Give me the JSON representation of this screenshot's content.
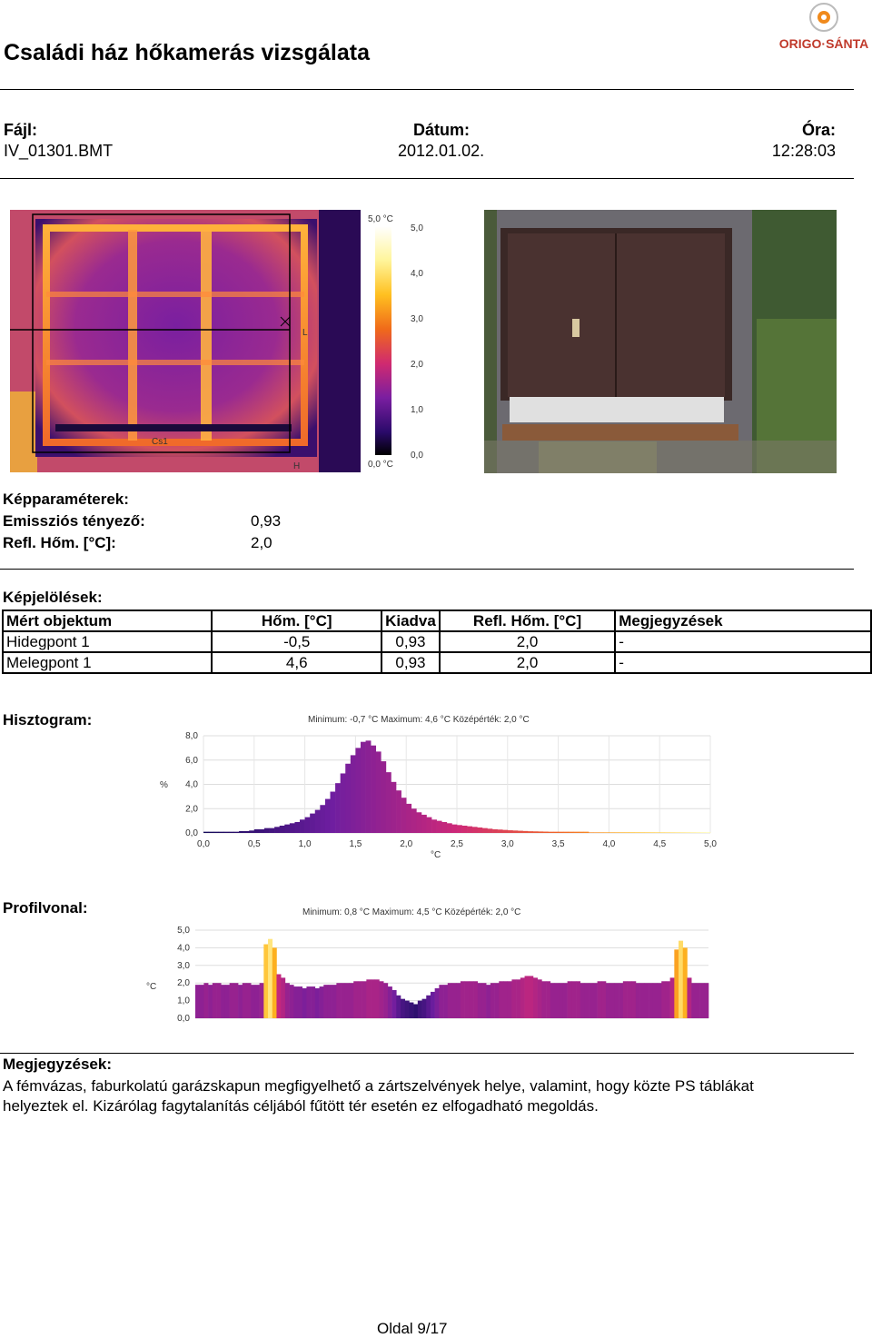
{
  "header": {
    "title": "Családi ház hőkamerás vizsgálata",
    "logo_text": "ORIGO·SÁNTA",
    "file_label": "Fájl:",
    "file_value": "IV_01301.BMT",
    "date_label": "Dátum:",
    "date_value": "2012.01.02.",
    "time_label": "Óra:",
    "time_value": "12:28:03"
  },
  "thermal": {
    "marker_l": "L",
    "marker_h": "H",
    "marker_cs": "Cs1",
    "scale_top": "5,0 °C",
    "scale_bottom": "0,0 °C",
    "scale_ticks": [
      "5,0",
      "4,0",
      "3,0",
      "2,0",
      "1,0",
      "0,0"
    ]
  },
  "params": {
    "heading": "Képparaméterek:",
    "emissivity_label": "Emissziós tényező:",
    "emissivity_value": "0,93",
    "refl_label": "Refl. Hőm. [°C]:",
    "refl_value": "2,0"
  },
  "marks": {
    "heading": "Képjelölések:",
    "columns": [
      "Mért objektum",
      "Hőm. [°C]",
      "Kiadva",
      "Refl. Hőm. [°C]",
      "Megjegyzések"
    ],
    "rows": [
      [
        "Hidegpont 1",
        "-0,5",
        "0,93",
        "2,0",
        "-"
      ],
      [
        "Melegpont 1",
        "4,6",
        "0,93",
        "2,0",
        "-"
      ]
    ]
  },
  "histogram": {
    "heading": "Hisztogram:",
    "stats": "Minimum:  -0,7  °C Maximum:  4,6  °C Középérték:  2,0  °C",
    "ylabel": "%",
    "xlabel": "°C"
  },
  "profile": {
    "heading": "Profilvonal:",
    "stats": "Minimum:  0,8  °C Maximum:  4,5  °C Középérték:  2,0  °C",
    "ylabel": "°C"
  },
  "chart_data": [
    {
      "type": "bar",
      "title": "Minimum:  -0,7  °C Maximum:  4,6  °C Középérték:  2,0  °C",
      "xlabel": "°C",
      "ylabel": "%",
      "xlim": [
        0,
        5
      ],
      "ylim": [
        0,
        8
      ],
      "x_ticks": [
        "0,0",
        "0,5",
        "1,0",
        "1,5",
        "2,0",
        "2,5",
        "3,0",
        "3,5",
        "4,0",
        "4,5",
        "5,0"
      ],
      "y_ticks": [
        "0,0",
        "2,0",
        "4,0",
        "6,0",
        "8,0"
      ],
      "grid": true,
      "values": [
        0.1,
        0.1,
        0.1,
        0.1,
        0.1,
        0.1,
        0.1,
        0.15,
        0.15,
        0.2,
        0.3,
        0.3,
        0.4,
        0.4,
        0.5,
        0.6,
        0.7,
        0.8,
        0.9,
        1.1,
        1.3,
        1.6,
        1.9,
        2.3,
        2.8,
        3.4,
        4.1,
        4.9,
        5.7,
        6.4,
        7.0,
        7.5,
        7.6,
        7.2,
        6.7,
        5.9,
        5.0,
        4.2,
        3.5,
        2.9,
        2.4,
        2.0,
        1.7,
        1.5,
        1.3,
        1.1,
        1.0,
        0.9,
        0.8,
        0.7,
        0.65,
        0.6,
        0.55,
        0.5,
        0.45,
        0.4,
        0.35,
        0.3,
        0.28,
        0.25,
        0.22,
        0.2,
        0.18,
        0.16,
        0.14,
        0.13,
        0.12,
        0.11,
        0.1,
        0.1,
        0.1,
        0.1,
        0.1,
        0.1,
        0.1,
        0.1,
        0.05,
        0.05,
        0.05,
        0.05,
        0.05,
        0.05,
        0.05,
        0.05,
        0.05,
        0.05,
        0.05,
        0.05,
        0.05,
        0.05,
        0.05,
        0.05,
        0.05,
        0.05,
        0.05,
        0.05,
        0.05,
        0.05,
        0.05,
        0.05
      ]
    },
    {
      "type": "bar",
      "title": "Minimum:  0,8  °C Maximum:  4,5  °C Középérték:  2,0  °C",
      "ylabel": "°C",
      "ylim": [
        0,
        5
      ],
      "y_ticks": [
        "0,0",
        "1,0",
        "2,0",
        "3,0",
        "4,0",
        "5,0"
      ],
      "grid": true,
      "values": [
        1.9,
        1.9,
        2.0,
        1.9,
        2.0,
        2.0,
        1.9,
        1.9,
        2.0,
        2.0,
        1.9,
        2.0,
        2.0,
        1.9,
        1.9,
        2.0,
        4.2,
        4.5,
        4.0,
        2.5,
        2.3,
        2.0,
        1.9,
        1.8,
        1.8,
        1.7,
        1.8,
        1.8,
        1.7,
        1.8,
        1.9,
        1.9,
        1.9,
        2.0,
        2.0,
        2.0,
        2.0,
        2.1,
        2.1,
        2.1,
        2.2,
        2.2,
        2.2,
        2.1,
        2.0,
        1.8,
        1.6,
        1.3,
        1.1,
        1.0,
        0.9,
        0.8,
        1.0,
        1.1,
        1.3,
        1.5,
        1.7,
        1.9,
        1.9,
        2.0,
        2.0,
        2.0,
        2.1,
        2.1,
        2.1,
        2.1,
        2.0,
        2.0,
        1.9,
        2.0,
        2.0,
        2.1,
        2.1,
        2.1,
        2.2,
        2.2,
        2.3,
        2.4,
        2.4,
        2.3,
        2.2,
        2.1,
        2.1,
        2.0,
        2.0,
        2.0,
        2.0,
        2.1,
        2.1,
        2.1,
        2.0,
        2.0,
        2.0,
        2.0,
        2.1,
        2.1,
        2.0,
        2.0,
        2.0,
        2.0,
        2.1,
        2.1,
        2.1,
        2.0,
        2.0,
        2.0,
        2.0,
        2.0,
        2.0,
        2.1,
        2.1,
        2.3,
        3.9,
        4.4,
        4.0,
        2.3,
        2.0,
        2.0,
        2.0,
        2.0
      ]
    }
  ],
  "notes": {
    "heading": "Megjegyzések:",
    "text": "A fémvázas, faburkolatú garázskapun megfigyelhető a zártszelvények helye, valamint, hogy közte PS táblákat helyeztek el. Kizárólag fagytalanítás céljából fűtött tér esetén ez elfogadható megoldás."
  },
  "footer": {
    "page": "Oldal 9/17"
  }
}
